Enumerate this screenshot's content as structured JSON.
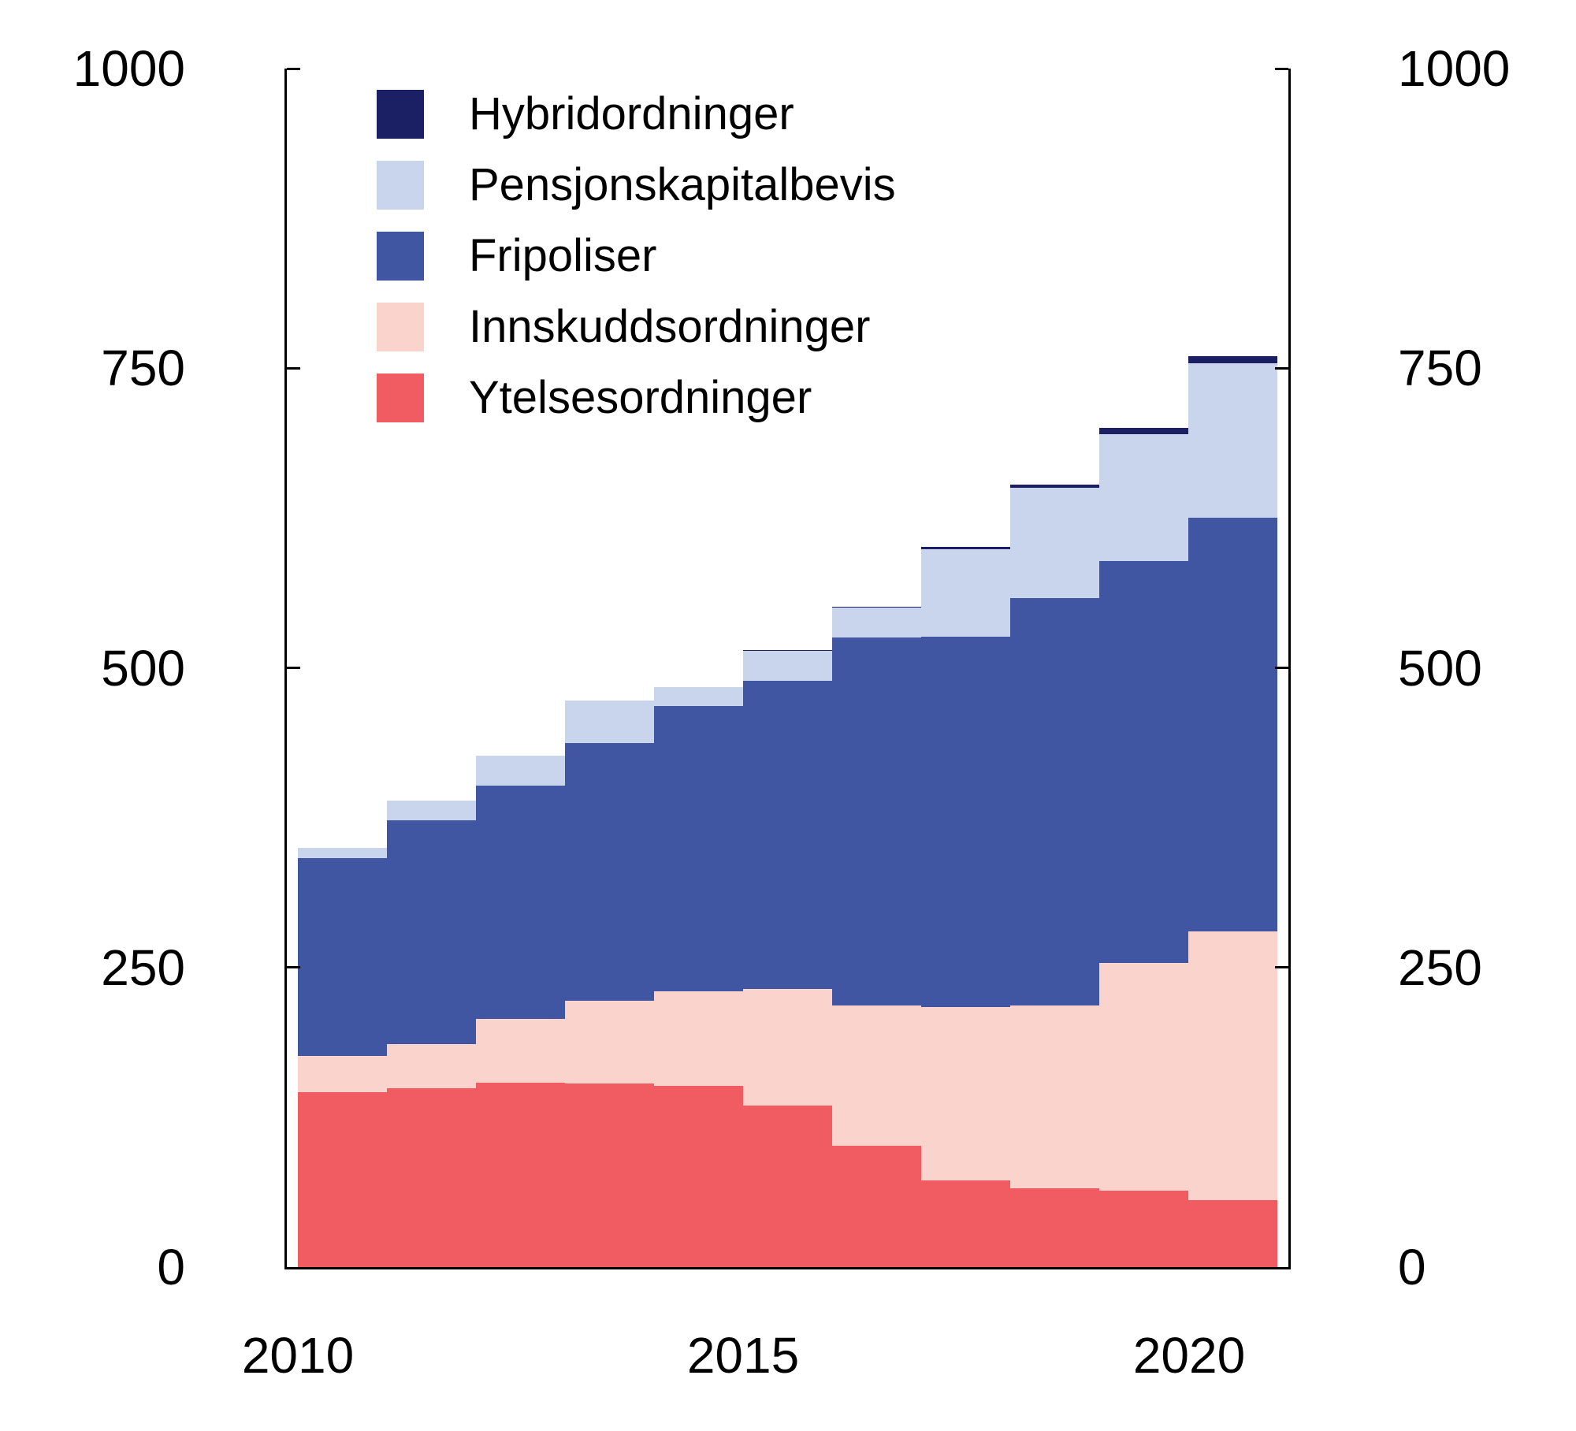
{
  "chart_data": {
    "type": "bar",
    "stacked": true,
    "title": "",
    "xlabel": "",
    "ylabel": "",
    "categories": [
      2010,
      2011,
      2012,
      2013,
      2014,
      2015,
      2016,
      2017,
      2018,
      2019,
      2020
    ],
    "series": [
      {
        "name": "Ytelsesordninger",
        "color": "#f15c63",
        "values": [
          146,
          149,
          154,
          153,
          151,
          135,
          101,
          72,
          66,
          64,
          56
        ]
      },
      {
        "name": "Innskuddsordninger",
        "color": "#fad3cd",
        "values": [
          30,
          37,
          53,
          69,
          79,
          97,
          117,
          145,
          152,
          190,
          224
        ]
      },
      {
        "name": "Fripoliser",
        "color": "#4156a3",
        "values": [
          165,
          187,
          195,
          215,
          238,
          257,
          307,
          309,
          340,
          335,
          345
        ]
      },
      {
        "name": "Pensjonskapitalbevis",
        "color": "#c9d5ec",
        "values": [
          9,
          16,
          25,
          36,
          16,
          25,
          25,
          73,
          92,
          106,
          129
        ]
      },
      {
        "name": "Hybridordninger",
        "color": "#1b2064",
        "values": [
          0,
          0,
          0,
          0,
          0,
          1,
          1,
          2,
          3,
          5,
          6
        ]
      }
    ],
    "ylim": [
      0,
      1000
    ],
    "yticks": [
      0,
      250,
      500,
      750,
      1000
    ],
    "grid": false,
    "legend_position": "upper-left-inside",
    "axis_color": "#000000",
    "background_color": "#ffffff"
  },
  "y_axis": {
    "left_labels": [
      "1000",
      "750",
      "500",
      "250",
      "0"
    ],
    "right_labels": [
      "1000",
      "750",
      "500",
      "250",
      "0"
    ]
  },
  "x_axis": {
    "tick_labels": [
      "2010",
      "2015",
      "2020"
    ]
  },
  "legend": {
    "items": [
      {
        "label": "Hybridordninger",
        "color": "#1b2064"
      },
      {
        "label": "Pensjonskapitalbevis",
        "color": "#c9d5ec"
      },
      {
        "label": "Fripoliser",
        "color": "#4156a3"
      },
      {
        "label": "Innskuddsordninger",
        "color": "#fad3cd"
      },
      {
        "label": "Ytelsesordninger",
        "color": "#f15c63"
      }
    ]
  }
}
